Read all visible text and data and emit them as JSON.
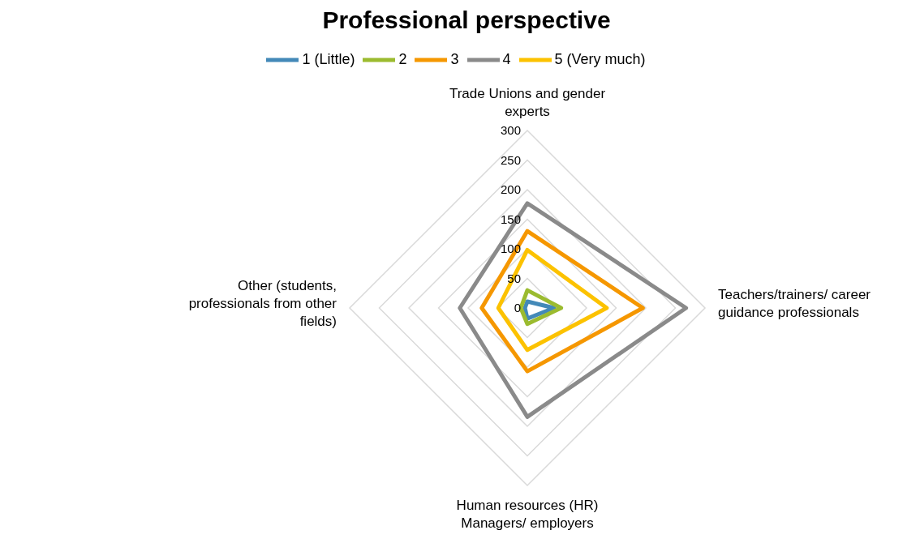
{
  "chart_data": {
    "type": "radar",
    "title": "Professional perspective",
    "categories": [
      "Trade Unions and gender experts",
      "Teachers/trainers/ career guidance professionals",
      "Human resources (HR) Managers/ employers",
      "Other (students, professionals from other fields)"
    ],
    "series": [
      {
        "name": "1 (Little)",
        "color": "#4389b8",
        "values": [
          11,
          45,
          18,
          4
        ]
      },
      {
        "name": "2",
        "color": "#9bbb2f",
        "values": [
          30,
          57,
          27,
          11
        ]
      },
      {
        "name": "3",
        "color": "#f59700",
        "values": [
          130,
          195,
          107,
          77
        ]
      },
      {
        "name": "4",
        "color": "#8a8a8a",
        "values": [
          177,
          268,
          184,
          114
        ]
      },
      {
        "name": "5 (Very much)",
        "color": "#fcc200",
        "values": [
          98,
          134,
          71,
          49
        ]
      }
    ],
    "ylim": [
      0,
      300
    ],
    "yticks": [
      0,
      50,
      100,
      150,
      200,
      250,
      300
    ],
    "grid": true,
    "legend": "top",
    "marker": "none",
    "line_style": "solid"
  }
}
